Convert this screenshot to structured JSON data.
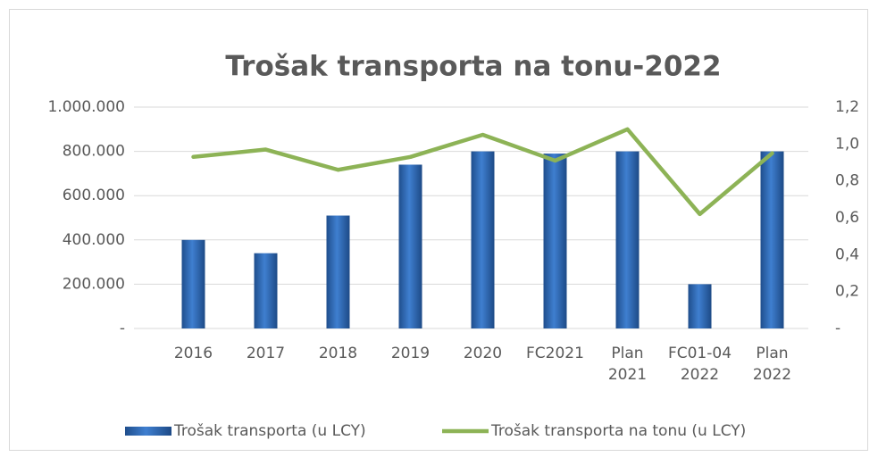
{
  "chart_data": {
    "type": "bar",
    "title": "Trošak transporta na tonu-2022",
    "categories": [
      "2016",
      "2017",
      "2018",
      "2019",
      "2020",
      "FC2021",
      "Plan 2021",
      "FC01-04 2022",
      "Plan 2022"
    ],
    "series": [
      {
        "name": "Trošak transporta (u LCY)",
        "type": "bar",
        "color": "#2e67b5",
        "values": [
          400000,
          340000,
          510000,
          740000,
          800000,
          790000,
          800000,
          200000,
          800000
        ]
      },
      {
        "name": "Trošak transporta na tonu (u LCY)",
        "type": "line",
        "axis": "y2",
        "color": "#8db356",
        "values": [
          0.93,
          0.97,
          0.86,
          0.93,
          1.05,
          0.91,
          1.08,
          0.62,
          0.95
        ]
      }
    ],
    "ylim": [
      0,
      1000000
    ],
    "yticks": [
      {
        "value": 0,
        "label": "-"
      },
      {
        "value": 200000,
        "label": "200.000"
      },
      {
        "value": 400000,
        "label": "400.000"
      },
      {
        "value": 600000,
        "label": "600.000"
      },
      {
        "value": 800000,
        "label": "800.000"
      },
      {
        "value": 1000000,
        "label": "1.000.000"
      }
    ],
    "y2lim": [
      0,
      1.2
    ],
    "y2ticks": [
      {
        "value": 0,
        "label": "-"
      },
      {
        "value": 0.2,
        "label": "0,2"
      },
      {
        "value": 0.4,
        "label": "0,4"
      },
      {
        "value": 0.6,
        "label": "0,6"
      },
      {
        "value": 0.8,
        "label": "0,8"
      },
      {
        "value": 1.0,
        "label": "1,0"
      },
      {
        "value": 1.2,
        "label": "1,2"
      }
    ],
    "grid": true,
    "legend": "bottom"
  }
}
